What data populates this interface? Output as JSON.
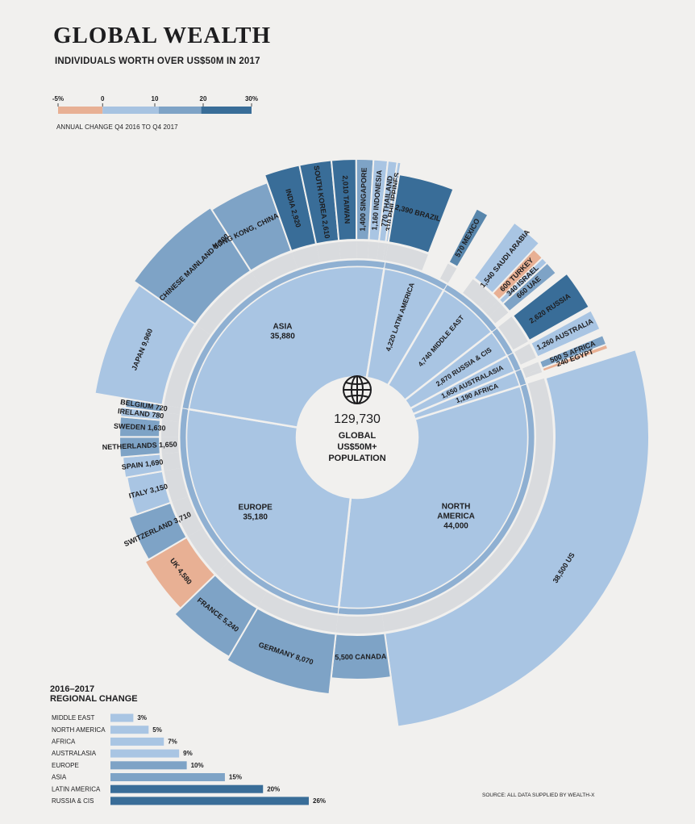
{
  "header": {
    "title": "GLOBAL WEALTH",
    "subtitle": "INDIVIDUALS WORTH OVER US$50M IN 2017"
  },
  "legend": {
    "ticks": [
      "-5%",
      "0",
      "10",
      "20",
      "30%"
    ],
    "caption": "ANNUAL CHANGE Q4 2016 TO Q4 2017",
    "colors": [
      "#e8b094",
      "#a7c3e1",
      "#7ea3c6",
      "#5886ac",
      "#396d98"
    ]
  },
  "center": {
    "value": "129,730",
    "line1": "GLOBAL",
    "line2": "US$50M+",
    "line3": "POPULATION"
  },
  "source": "SOURCE: ALL DATA SUPPLIED BY WEALTH-X",
  "regional_change_title": [
    "2016–2017",
    "REGIONAL CHANGE"
  ],
  "chart_data": [
    {
      "type": "sunburst",
      "title": "GLOBAL WEALTH",
      "subtitle": "INDIVIDUALS WORTH OVER US$50M IN 2017",
      "total": 129730,
      "regions": [
        {
          "name": "NORTH AMERICA",
          "value": 44000,
          "value_label": "44,000",
          "label": "NORTH\nAMERICA\n44,000",
          "color": "#a9c5e3",
          "countries": [
            {
              "name": "US",
              "value": 38500,
              "label": "38,500 US",
              "color": "#a9c5e3"
            },
            {
              "name": "CANADA",
              "value": 5500,
              "label": "5,500 CANADA",
              "color": "#7ea3c6"
            }
          ]
        },
        {
          "name": "EUROPE",
          "value": 35180,
          "value_label": "35,180",
          "label": "EUROPE\n35,180",
          "color": "#a9c5e3",
          "countries": [
            {
              "name": "GERMANY",
              "value": 8070,
              "label": "GERMANY 8,070",
              "color": "#7ea3c6"
            },
            {
              "name": "FRANCE",
              "value": 5240,
              "label": "FRANCE 5,240",
              "color": "#7ea3c6"
            },
            {
              "name": "UK",
              "value": 4580,
              "label": "UK 4,580",
              "color": "#e8b094"
            },
            {
              "name": "SWITZERLAND",
              "value": 3710,
              "label": "SWITZERLAND 3,710",
              "color": "#7ea3c6"
            },
            {
              "name": "ITALY",
              "value": 3150,
              "label": "ITALY 3,150",
              "color": "#a9c5e3"
            },
            {
              "name": "SPAIN",
              "value": 1690,
              "label": "SPAIN 1,690",
              "color": "#a9c5e3"
            },
            {
              "name": "NETHERLANDS",
              "value": 1650,
              "label": "NETHERLANDS 1,650",
              "color": "#7ea3c6"
            },
            {
              "name": "SWEDEN",
              "value": 1630,
              "label": "SWEDEN 1,630",
              "color": "#7ea3c6"
            },
            {
              "name": "IRELAND",
              "value": 780,
              "label": "IRELAND 780",
              "color": "#a9c5e3"
            },
            {
              "name": "BELGIUM",
              "value": 720,
              "label": "BELGIUM 720",
              "color": "#7ea3c6"
            }
          ]
        },
        {
          "name": "ASIA",
          "value": 35880,
          "value_label": "35,880",
          "label": "ASIA\n35,880",
          "color": "#a9c5e3",
          "countries": [
            {
              "name": "JAPAN",
              "value": 9960,
              "label": "JAPAN 9,960",
              "color": "#a9c5e3"
            },
            {
              "name": "CHINESE MAINLAND",
              "value": 8800,
              "label": "CHINESE MAINLAND 8,800",
              "color": "#7ea3c6"
            },
            {
              "name": "HONG KONG, CHINA",
              "value": 5140,
              "label": "HONG KONG, CHINA 5,140",
              "color": "#7ea3c6"
            },
            {
              "name": "INDIA",
              "value": 2920,
              "label": "INDIA 2,920",
              "color": "#396d98"
            },
            {
              "name": "SOUTH KOREA",
              "value": 2610,
              "label": "SOUTH KOREA 2,610",
              "color": "#396d98"
            },
            {
              "name": "TAIWAN",
              "value": 2010,
              "label": "2,010 TAIWAN",
              "color": "#396d98"
            },
            {
              "name": "SINGAPORE",
              "value": 1400,
              "label": "1,400 SINGAPORE",
              "color": "#7ea3c6"
            },
            {
              "name": "INDONESIA",
              "value": 1160,
              "label": "1,160 INDONESIA",
              "color": "#a9c5e3"
            },
            {
              "name": "THAILAND",
              "value": 770,
              "label": "770 THAILAND",
              "color": "#a9c5e3"
            },
            {
              "name": "PHILIPPINES",
              "value": 310,
              "label": "310 PHILIPPINES",
              "color": "#a9c5e3"
            }
          ]
        },
        {
          "name": "LATIN AMERICA",
          "value": 4220,
          "value_label": "4,220",
          "label": "4,220 LATIN AMERICA",
          "color": "#a9c5e3",
          "countries": [
            {
              "name": "BRAZIL",
              "value": 2390,
              "label": "2,390 BRAZIL",
              "color": "#396d98"
            },
            {
              "name": "OTHER",
              "value": 1260,
              "label": "",
              "color": "#f1f0ee"
            },
            {
              "name": "MEXICO",
              "value": 570,
              "label": "570 MEXICO",
              "color": "#5886ac"
            }
          ]
        },
        {
          "name": "MIDDLE EAST",
          "value": 4740,
          "value_label": "4,740",
          "label": "4,740 MIDDLE EAST",
          "color": "#a9c5e3",
          "countries": [
            {
              "name": "OTHER",
              "value": 1260,
              "label": "",
              "color": "#f1f0ee"
            },
            {
              "name": "SAUDI ARABIA",
              "value": 1540,
              "label": "1,540 SAUDI ARABIA",
              "color": "#a9c5e3"
            },
            {
              "name": "TURKEY",
              "value": 600,
              "label": "600 TURKEY",
              "color": "#e8b094"
            },
            {
              "name": "ISRAEL",
              "value": 340,
              "label": "340 ISRAEL",
              "color": "#a9c5e3"
            },
            {
              "name": "UAE",
              "value": 660,
              "label": "660 UAE",
              "color": "#7ea3c6"
            },
            {
              "name": "OTHER2",
              "value": 340,
              "label": "",
              "color": "#f1f0ee"
            }
          ]
        },
        {
          "name": "RUSSIA & CIS",
          "value": 2870,
          "value_label": "2,870",
          "label": "2,870 RUSSIA & CIS",
          "color": "#a9c5e3",
          "countries": [
            {
              "name": "RUSSIA",
              "value": 2620,
              "label": "2,620 RUSSIA",
              "color": "#396d98"
            },
            {
              "name": "OTHER",
              "value": 250,
              "label": "",
              "color": "#f1f0ee"
            }
          ]
        },
        {
          "name": "AUSTRALASIA",
          "value": 1650,
          "value_label": "1,650",
          "label": "1,650 AUSTRALASIA",
          "color": "#a9c5e3",
          "countries": [
            {
              "name": "AUSTRALIA",
              "value": 1260,
              "label": "1,260 AUSTRALIA",
              "color": "#a9c5e3"
            },
            {
              "name": "OTHER",
              "value": 390,
              "label": "",
              "color": "#f1f0ee"
            }
          ]
        },
        {
          "name": "AFRICA",
          "value": 1190,
          "value_label": "1,190",
          "label": "1,190 AFRICA",
          "color": "#a9c5e3",
          "countries": [
            {
              "name": "S AFRICA",
              "value": 500,
              "label": "500 S AFRICA",
              "color": "#7ea3c6"
            },
            {
              "name": "EGYPT",
              "value": 240,
              "label": "240 EGYPT",
              "color": "#e8b094"
            },
            {
              "name": "OTHER",
              "value": 450,
              "label": "",
              "color": "#f1f0ee"
            }
          ]
        }
      ]
    },
    {
      "type": "bar",
      "orientation": "horizontal",
      "title": "2016–2017 REGIONAL CHANGE",
      "categories": [
        "MIDDLE EAST",
        "NORTH AMERICA",
        "AFRICA",
        "AUSTRALASIA",
        "EUROPE",
        "ASIA",
        "LATIN AMERICA",
        "RUSSIA & CIS"
      ],
      "values": [
        3,
        5,
        7,
        9,
        10,
        15,
        20,
        26
      ],
      "value_labels": [
        "3%",
        "5%",
        "7%",
        "9%",
        "10%",
        "15%",
        "20%",
        "26%"
      ],
      "colors": [
        "#a9c5e3",
        "#a9c5e3",
        "#a9c5e3",
        "#a9c5e3",
        "#7ea3c6",
        "#7ea3c6",
        "#396d98",
        "#396d98"
      ],
      "xlim": [
        0,
        26
      ]
    }
  ]
}
